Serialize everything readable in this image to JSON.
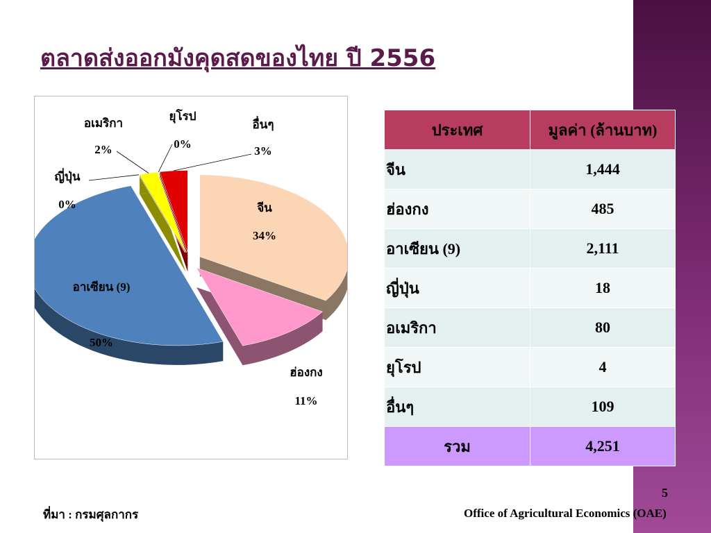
{
  "title": "ตลาดส่งออกมังคุดสดของไทย ปี 2556",
  "chart_data": {
    "type": "pie",
    "categories": [
      "จีน",
      "ฮ่องกง",
      "อาเซียน (9)",
      "ญี่ปุ่น",
      "อเมริกา",
      "ยุโรป",
      "อื่นๆ"
    ],
    "values": [
      34,
      11,
      50,
      0,
      2,
      0,
      3
    ],
    "value_labels": [
      "34%",
      "11%",
      "50%",
      "0%",
      "2%",
      "0%",
      "3%"
    ],
    "colors": [
      "#fcd5b4",
      "#ff99cc",
      "#4f81bd",
      "#b3a2c7",
      "#ffff00",
      "#00b050",
      "#e00000"
    ]
  },
  "table": {
    "header": [
      "ประเทศ",
      "มูลค่า (ล้านบาท)"
    ],
    "rows": [
      [
        "จีน",
        "1,444"
      ],
      [
        "ฮ่องกง",
        "485"
      ],
      [
        "อาเซียน (9)",
        "2,111"
      ],
      [
        "ญี่ปุ่น",
        "18"
      ],
      [
        "อเมริกา",
        "80"
      ],
      [
        "ยุโรป",
        "4"
      ],
      [
        "อื่นๆ",
        "109"
      ]
    ],
    "total": [
      "รวม",
      "4,251"
    ]
  },
  "source": "ที่มา : กรมศุลกากร",
  "page_number": "5",
  "footer": "Office of Agricultural Economics (OAE)"
}
